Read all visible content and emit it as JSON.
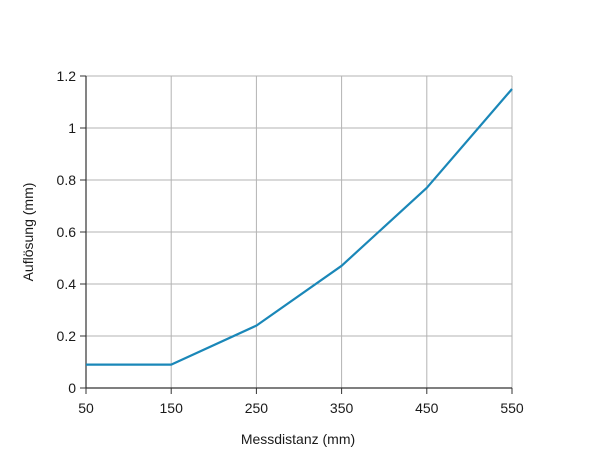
{
  "chart_data": {
    "type": "line",
    "xlabel": "Messdistanz (mm)",
    "ylabel": "Auflösung (mm)",
    "x_ticks": [
      "50",
      "150",
      "250",
      "350",
      "450",
      "550"
    ],
    "y_ticks": [
      "0",
      "0.2",
      "0.4",
      "0.6",
      "0.8",
      "1",
      "1.2"
    ],
    "xlim": [
      50,
      550
    ],
    "ylim": [
      0,
      1.2
    ],
    "grid": true,
    "series": [
      {
        "x": [
          50,
          150,
          250,
          350,
          450,
          550
        ],
        "y": [
          0.09,
          0.09,
          0.24,
          0.47,
          0.77,
          1.15
        ]
      }
    ],
    "colors": {
      "line": "#1a87b8",
      "grid": "#b3b3b3",
      "axis": "#333333"
    }
  }
}
